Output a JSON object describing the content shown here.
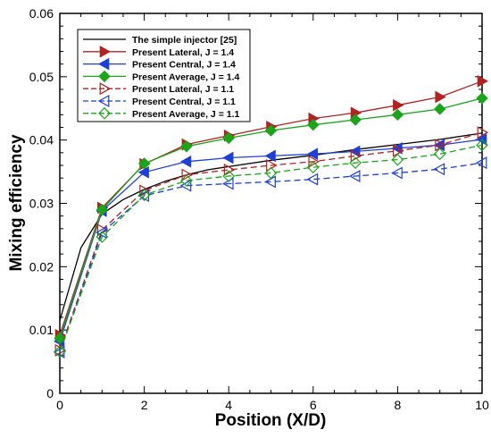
{
  "chart_data": {
    "type": "line",
    "xlabel": "Position (X/D)",
    "ylabel": "Mixing efficiency",
    "xlim": [
      0,
      10
    ],
    "ylim": [
      0,
      0.06
    ],
    "xticks": [
      0,
      2,
      4,
      6,
      8,
      10
    ],
    "yticks": [
      0,
      0.01,
      0.02,
      0.03,
      0.04,
      0.05,
      0.06
    ],
    "ytick_labels": [
      "0",
      "0.01",
      "0.02",
      "0.03",
      "0.04",
      "0.05",
      "0.06"
    ],
    "grid": false,
    "legend_position": "top-left",
    "series": [
      {
        "name": "The simple injector [25]",
        "color": "#000000",
        "dash": "solid",
        "marker": "none",
        "x": [
          0,
          0.5,
          1,
          1.5,
          2,
          2.5,
          3,
          3.5,
          4,
          5,
          6,
          7,
          8,
          9,
          10
        ],
        "y": [
          0.0115,
          0.023,
          0.0283,
          0.0306,
          0.0322,
          0.0335,
          0.0345,
          0.0353,
          0.0358,
          0.0368,
          0.0376,
          0.0385,
          0.0393,
          0.0401,
          0.0411
        ]
      },
      {
        "name": "Present Lateral, J = 1.4",
        "color": "#b22222",
        "dash": "solid",
        "marker": "triangle-right-filled",
        "x": [
          0,
          1,
          2,
          3,
          4,
          5,
          6,
          7,
          8,
          9,
          10
        ],
        "y": [
          0.0092,
          0.0293,
          0.0362,
          0.0393,
          0.0407,
          0.0421,
          0.0434,
          0.0443,
          0.0455,
          0.0468,
          0.0493
        ]
      },
      {
        "name": "Present Central, J = 1.4",
        "color": "#1f3fd6",
        "dash": "solid",
        "marker": "triangle-left-filled",
        "x": [
          0,
          1,
          2,
          3,
          4,
          5,
          6,
          7,
          8,
          9,
          10
        ],
        "y": [
          0.0082,
          0.0288,
          0.0349,
          0.0366,
          0.0372,
          0.0375,
          0.0378,
          0.0382,
          0.0387,
          0.0392,
          0.0401
        ]
      },
      {
        "name": "Present Average, J = 1.4",
        "color": "#1aa51a",
        "dash": "solid",
        "marker": "diamond-filled",
        "x": [
          0,
          1,
          2,
          3,
          4,
          5,
          6,
          7,
          8,
          9,
          10
        ],
        "y": [
          0.0087,
          0.029,
          0.0363,
          0.039,
          0.0403,
          0.0415,
          0.0424,
          0.0432,
          0.044,
          0.0449,
          0.0466
        ]
      },
      {
        "name": "Present Lateral, J = 1.1",
        "color": "#b22222",
        "dash": "dashed",
        "marker": "triangle-right-open",
        "x": [
          0,
          1,
          2,
          3,
          4,
          5,
          6,
          7,
          8,
          9,
          10
        ],
        "y": [
          0.0068,
          0.0258,
          0.032,
          0.0345,
          0.0353,
          0.036,
          0.0366,
          0.0375,
          0.0383,
          0.0392,
          0.0412
        ]
      },
      {
        "name": "Present Central, J = 1.1",
        "color": "#1f3fd6",
        "dash": "dashed",
        "marker": "triangle-left-open",
        "x": [
          0,
          1,
          2,
          3,
          4,
          5,
          6,
          7,
          8,
          9,
          10
        ],
        "y": [
          0.0065,
          0.0254,
          0.0312,
          0.0328,
          0.0331,
          0.0334,
          0.0338,
          0.0343,
          0.0348,
          0.0354,
          0.0364
        ]
      },
      {
        "name": "Present Average, J = 1.1",
        "color": "#1aa51a",
        "dash": "dashed",
        "marker": "diamond-open",
        "x": [
          0,
          1,
          2,
          3,
          4,
          5,
          6,
          7,
          8,
          9,
          10
        ],
        "y": [
          0.0066,
          0.0247,
          0.0313,
          0.0336,
          0.0343,
          0.0348,
          0.0357,
          0.0364,
          0.0369,
          0.0378,
          0.0392
        ]
      }
    ]
  }
}
